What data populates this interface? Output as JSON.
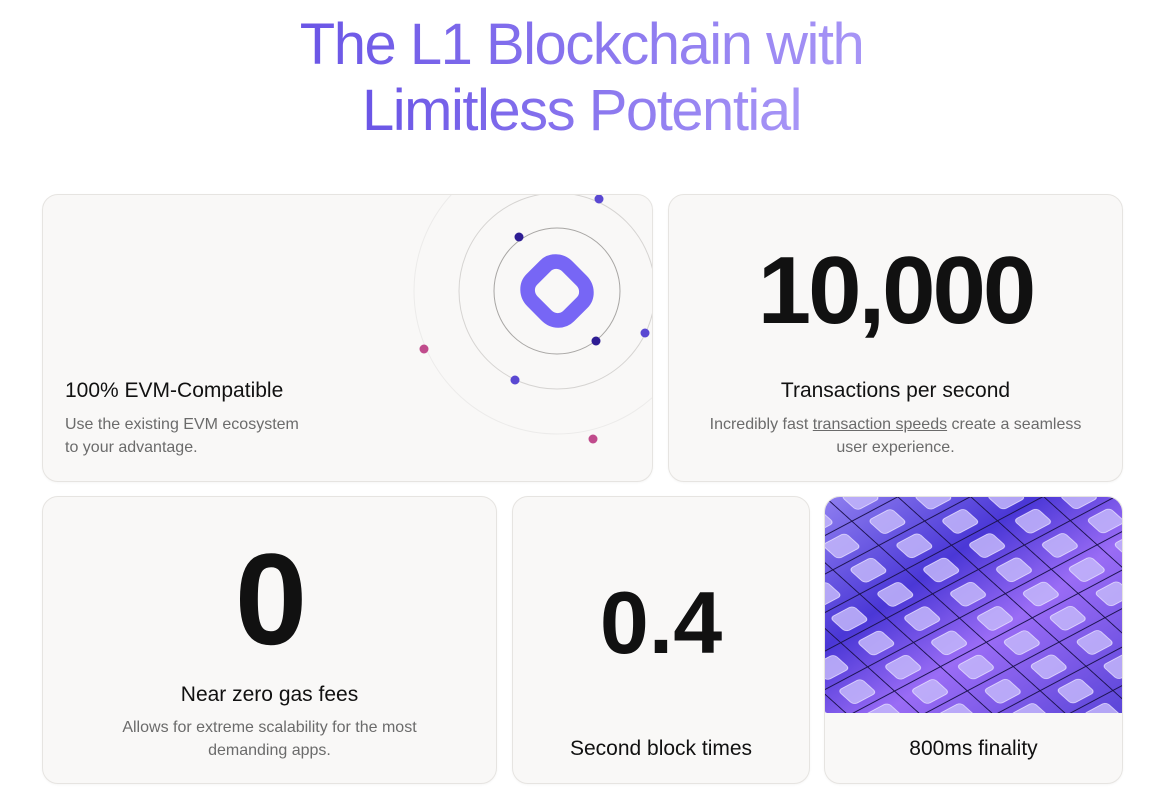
{
  "title": {
    "line1": "The L1 Blockchain with",
    "line2": "Limitless Potential"
  },
  "colors": {
    "accent": "#7766f5",
    "title_gradient_start": "#6a55e6",
    "title_gradient_end": "#a795f6"
  },
  "cards": {
    "evm": {
      "heading": "100% EVM-Compatible",
      "desc_line1": "Use the existing EVM ecosystem",
      "desc_line2": "to your advantage.",
      "icon": "orbit-logo-icon"
    },
    "tps": {
      "stat": "10,000",
      "heading": "Transactions per second",
      "desc_pre": "Incredibly fast ",
      "desc_link": "transaction speeds",
      "desc_post": " create a seamless",
      "desc_line2": "user experience."
    },
    "gas": {
      "stat": "0",
      "heading": "Near zero gas fees",
      "desc_line1": "Allows for extreme scalability for the most",
      "desc_line2": "demanding apps."
    },
    "block": {
      "stat": "0.4",
      "heading": "Second block times"
    },
    "finality": {
      "heading": "800ms finality",
      "image": "diamond-tile-grid-image"
    }
  }
}
